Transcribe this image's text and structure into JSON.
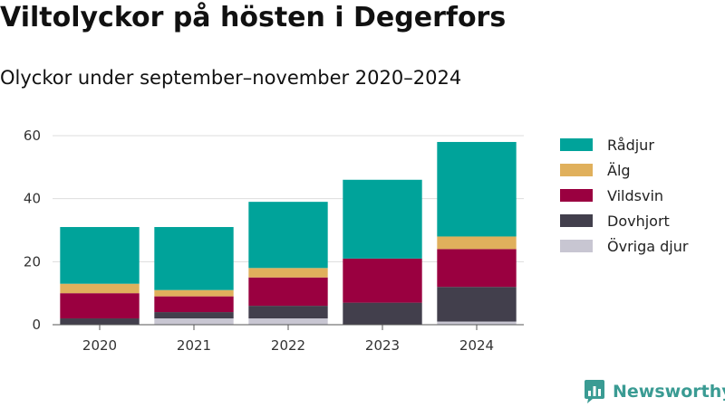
{
  "header": {
    "title": "Viltolyckor på hösten i Degerfors",
    "subtitle": "Olyckor under september–november 2020–2024"
  },
  "brand": {
    "name": "Newsworthy",
    "logo_icon": "newsworthy-chart-bubble-icon",
    "color": "#3a9b93"
  },
  "chart_data": {
    "type": "bar",
    "stacked": true,
    "title": "Viltolyckor på hösten i Degerfors",
    "subtitle": "Olyckor under september–november 2020–2024",
    "xlabel": "",
    "ylabel": "",
    "categories": [
      "2020",
      "2021",
      "2022",
      "2023",
      "2024"
    ],
    "ylim": [
      0,
      60
    ],
    "yticks": [
      0,
      20,
      40,
      60
    ],
    "grid": true,
    "legend_position": "right",
    "series": [
      {
        "name": "Övriga djur",
        "color": "#c8c6d2",
        "values": [
          0,
          2,
          2,
          0,
          1
        ]
      },
      {
        "name": "Dovhjort",
        "color": "#423f4c",
        "values": [
          2,
          2,
          4,
          7,
          11
        ]
      },
      {
        "name": "Vildsvin",
        "color": "#9a0040",
        "values": [
          8,
          5,
          9,
          14,
          12
        ]
      },
      {
        "name": "Älg",
        "color": "#e0b05c",
        "values": [
          3,
          2,
          3,
          0,
          4
        ]
      },
      {
        "name": "Rådjur",
        "color": "#00a39a",
        "values": [
          18,
          20,
          21,
          25,
          30
        ]
      }
    ],
    "legend_order": [
      "Rådjur",
      "Älg",
      "Vildsvin",
      "Dovhjort",
      "Övriga djur"
    ]
  }
}
